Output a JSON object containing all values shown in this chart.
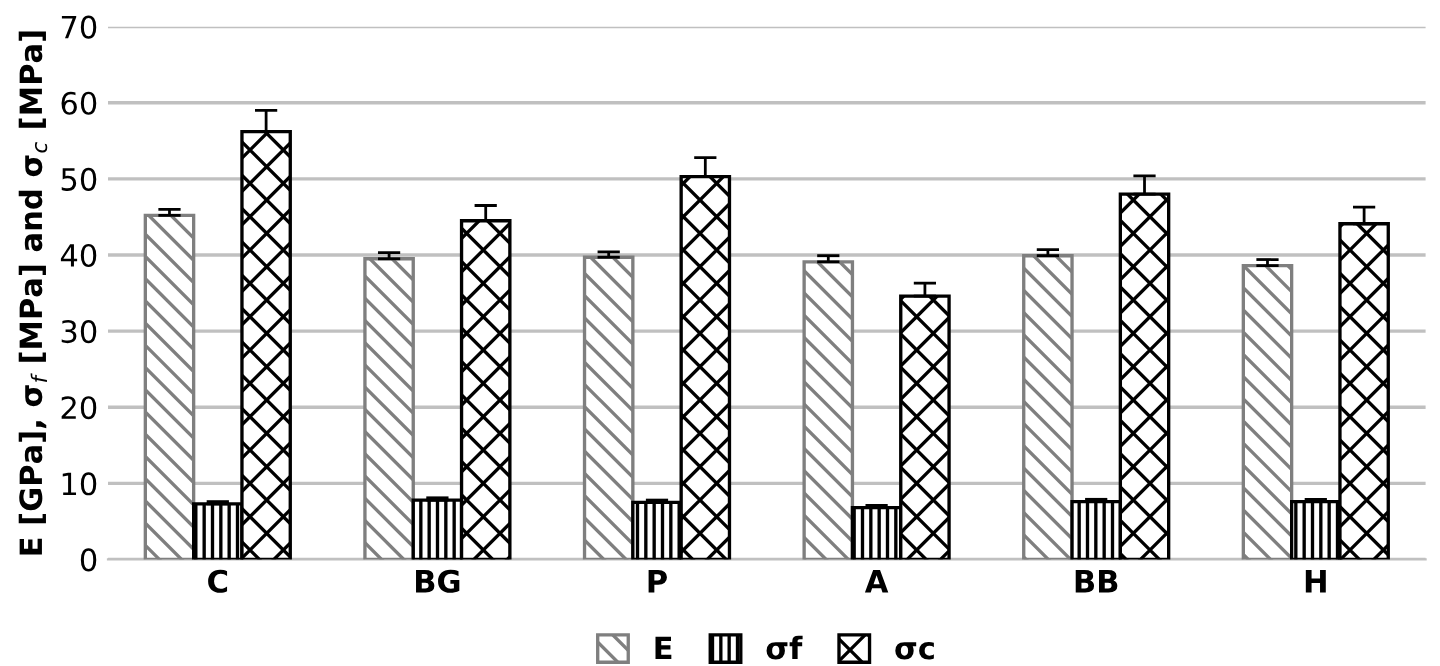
{
  "chart_data": {
    "type": "bar",
    "ylabel": "E [GPa], σ$_{f}$ [MPa] and σ$_{c}$ [MPa]",
    "categories": [
      "C",
      "BG",
      "P",
      "A",
      "BB",
      "H"
    ],
    "series": [
      {
        "name": "E",
        "color": "#7f7f7f",
        "values": [
          45.2,
          39.5,
          39.7,
          39.1,
          39.9,
          38.6
        ],
        "errors": [
          0.8,
          0.8,
          0.7,
          0.8,
          0.8,
          0.8
        ]
      },
      {
        "name": "σf",
        "color": "#000000",
        "values": [
          7.3,
          7.8,
          7.5,
          6.8,
          7.6,
          7.6
        ],
        "errors": [
          0.3,
          0.3,
          0.3,
          0.3,
          0.3,
          0.3
        ]
      },
      {
        "name": "σc",
        "color": "#000000",
        "values": [
          56.2,
          44.5,
          50.3,
          34.6,
          48.0,
          44.1
        ],
        "errors": [
          2.8,
          2.0,
          2.5,
          1.7,
          2.4,
          2.2
        ]
      }
    ],
    "ylim": [
      0,
      70
    ],
    "yticks": [
      0,
      10,
      20,
      30,
      40,
      50,
      60,
      70
    ],
    "grid": "y",
    "legend": "bottom"
  }
}
